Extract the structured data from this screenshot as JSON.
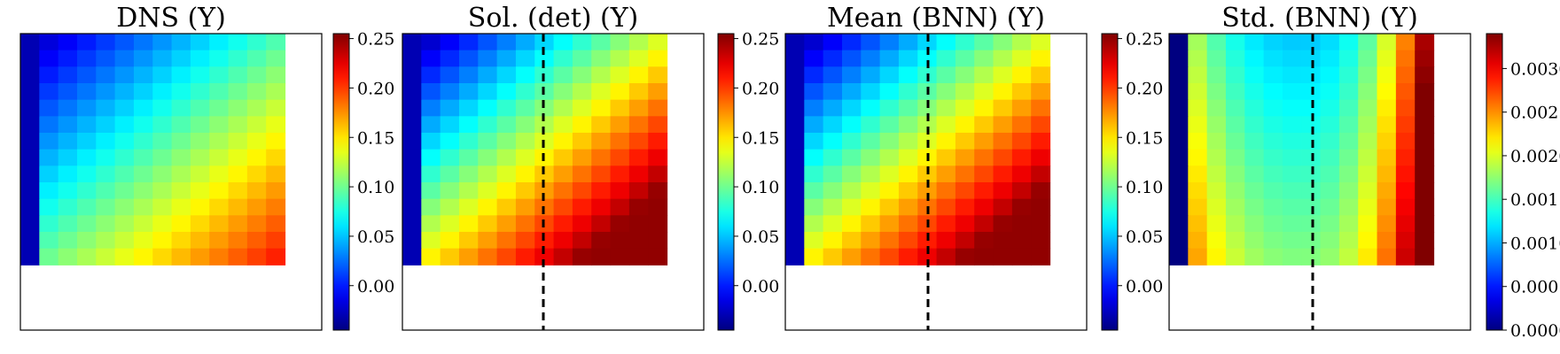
{
  "chart_data": [
    {
      "type": "heatmap",
      "title": "DNS (Y)",
      "colorbar": {
        "ticks": [
          "0.00",
          "0.05",
          "0.10",
          "0.15",
          "0.20",
          "0.25"
        ],
        "tick_values": [
          0,
          0.05,
          0.1,
          0.15,
          0.2,
          0.25
        ],
        "range": [
          -0.045,
          0.255
        ]
      },
      "grid": {
        "rows": 14,
        "cols": 14
      },
      "dashed_line": false,
      "colormap": "jet",
      "pattern": "diagonal",
      "value_range": [
        -0.04,
        0.25
      ]
    },
    {
      "type": "heatmap",
      "title": "Sol. (det) (Y)",
      "colorbar": {
        "ticks": [
          "0.00",
          "0.05",
          "0.10",
          "0.15",
          "0.20",
          "0.25"
        ],
        "tick_values": [
          0,
          0.05,
          0.1,
          0.15,
          0.2,
          0.25
        ],
        "range": [
          -0.045,
          0.255
        ]
      },
      "grid": {
        "rows": 14,
        "cols": 14
      },
      "dashed_line": true,
      "colormap": "jet",
      "pattern": "diagonal-strong",
      "value_range": [
        -0.04,
        0.25
      ]
    },
    {
      "type": "heatmap",
      "title": "Mean (BNN) (Y)",
      "colorbar": {
        "ticks": [
          "0.00",
          "0.05",
          "0.10",
          "0.15",
          "0.20",
          "0.25"
        ],
        "tick_values": [
          0,
          0.05,
          0.1,
          0.15,
          0.2,
          0.25
        ],
        "range": [
          -0.045,
          0.255
        ]
      },
      "grid": {
        "rows": 14,
        "cols": 14
      },
      "dashed_line": true,
      "colormap": "jet",
      "pattern": "diagonal-strong",
      "value_range": [
        -0.04,
        0.25
      ]
    },
    {
      "type": "heatmap",
      "title": "Std. (BNN) (Y)",
      "colorbar": {
        "ticks": [
          "0.0000",
          "0.0005",
          "0.0010",
          "0.0015",
          "0.0020",
          "0.0025",
          "0.0030"
        ],
        "tick_values": [
          0,
          0.0005,
          0.001,
          0.0015,
          0.002,
          0.0025,
          0.003
        ],
        "range": [
          0,
          0.0034
        ]
      },
      "grid": {
        "rows": 14,
        "cols": 14
      },
      "dashed_line": true,
      "colormap": "jet",
      "pattern": "std",
      "value_range": [
        0,
        0.0033
      ]
    }
  ]
}
